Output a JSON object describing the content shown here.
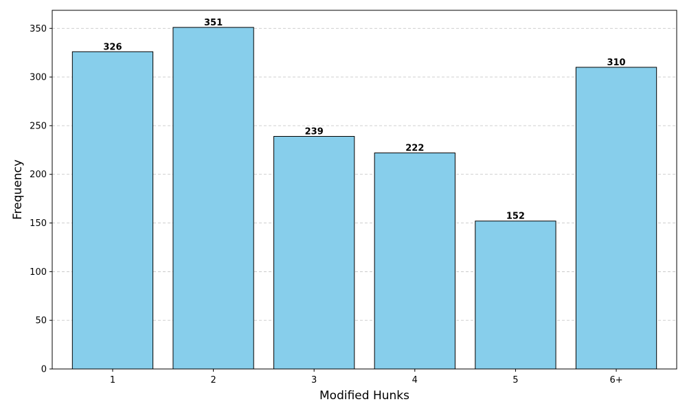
{
  "chart_data": {
    "type": "bar",
    "title": "",
    "xlabel": "Modified Hunks",
    "ylabel": "Frequency",
    "categories": [
      "1",
      "2",
      "3",
      "4",
      "5",
      "6+"
    ],
    "values": [
      326,
      351,
      239,
      222,
      152,
      310
    ],
    "ylim": [
      0,
      368.55
    ],
    "yticks": [
      0,
      50,
      100,
      150,
      200,
      250,
      300,
      350
    ],
    "grid": "y-dashed",
    "bar_color": "#87CEEB",
    "bar_edge_color": "#000000",
    "grid_color": "#c8c8c8",
    "show_value_labels": true
  }
}
